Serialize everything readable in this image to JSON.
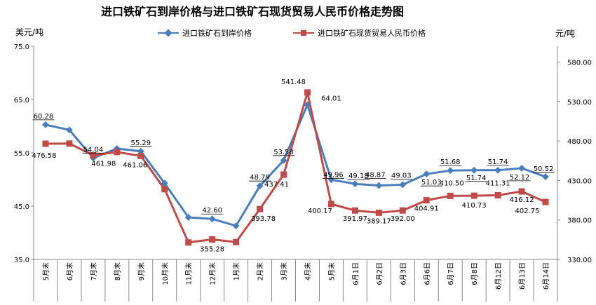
{
  "chart_data": {
    "type": "line",
    "title": "进口铁矿石到岸价格与进口铁矿石现货贸易人民币价格走势图",
    "ylabel_left": "美元/吨",
    "ylabel_right": "元/吨",
    "categories": [
      "5月末",
      "6月末",
      "7月末",
      "8月末",
      "9月末",
      "10月末",
      "11月末",
      "12月末",
      "1月末",
      "2月末",
      "3月末",
      "4月末",
      "5月末",
      "6月1日",
      "6月2日",
      "6月3日",
      "6月6日",
      "6月7日",
      "6月8日",
      "6月12日",
      "6月13日",
      "6月14日"
    ],
    "y_left_range": [
      35,
      75
    ],
    "y_left_ticks": [
      "35.0",
      "45.0",
      "55.0",
      "65.0",
      "75.0"
    ],
    "y_right_range": [
      330,
      600
    ],
    "y_right_ticks": [
      "330.00",
      "380.00",
      "430.00",
      "480.00",
      "530.00",
      "580.00"
    ],
    "grid": false,
    "legend_position": "top",
    "series": [
      {
        "name": "进口铁矿石到岸价格",
        "axis": "left",
        "color": "#4a7ebb",
        "marker": "diamond",
        "values": [
          60.28,
          59.3,
          54.04,
          55.8,
          55.29,
          49.3,
          42.9,
          42.6,
          41.3,
          48.79,
          53.58,
          64.01,
          49.96,
          49.18,
          48.87,
          49.03,
          51.03,
          51.68,
          51.74,
          51.74,
          52.12,
          50.52
        ],
        "labels": [
          "60.28",
          "",
          "54.04",
          "",
          "55.29",
          "",
          "",
          "42.60",
          "",
          "48.79",
          "53.58",
          "64.01",
          "49.96",
          "49.18",
          "48.87",
          "49.03",
          "51.03",
          "51.68",
          "51.74",
          "51.74",
          "52.12",
          "50.52"
        ]
      },
      {
        "name": "进口铁矿石现货贸易人民币价格",
        "axis": "right",
        "color": "#be4b48",
        "marker": "square",
        "values": [
          476.58,
          476.8,
          461.98,
          466.0,
          461.06,
          419.0,
          351.5,
          355.28,
          352.0,
          393.78,
          437.41,
          541.48,
          400.17,
          391.97,
          389.17,
          392.0,
          404.91,
          410.5,
          410.73,
          411.31,
          416.12,
          402.75
        ],
        "labels": [
          "476.58",
          "",
          "461.98",
          "",
          "461.06",
          "",
          "",
          "355.28",
          "",
          "393.78",
          "437.41",
          "541.48",
          "400.17",
          "391.97",
          "389.17",
          "392.00",
          "404.91",
          "410.50",
          "410.73",
          "411.31",
          "416.12",
          "402.75"
        ]
      }
    ]
  }
}
